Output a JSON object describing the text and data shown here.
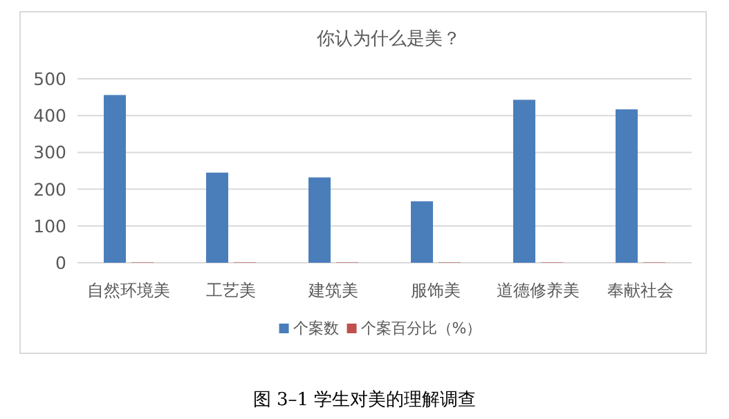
{
  "chart_data": {
    "type": "bar",
    "title": "你认为什么是美？",
    "categories": [
      "自然环境美",
      "工艺美",
      "建筑美",
      "服饰美",
      "道德修养美",
      "奉献社会"
    ],
    "series": [
      {
        "name": "个案数",
        "color": "#4a7ebb",
        "values": [
          456,
          245,
          232,
          167,
          443,
          417
        ]
      },
      {
        "name": "个案百分比（%）",
        "color": "#c0504d",
        "values": [
          1,
          1,
          1,
          1,
          1,
          1
        ]
      }
    ],
    "ylim": [
      0,
      500
    ],
    "yticks": [
      0,
      100,
      200,
      300,
      400,
      500
    ],
    "grid": "y",
    "legend": "bottom",
    "annotations": [
      "图 3–1 学生对美的理解调查"
    ]
  }
}
